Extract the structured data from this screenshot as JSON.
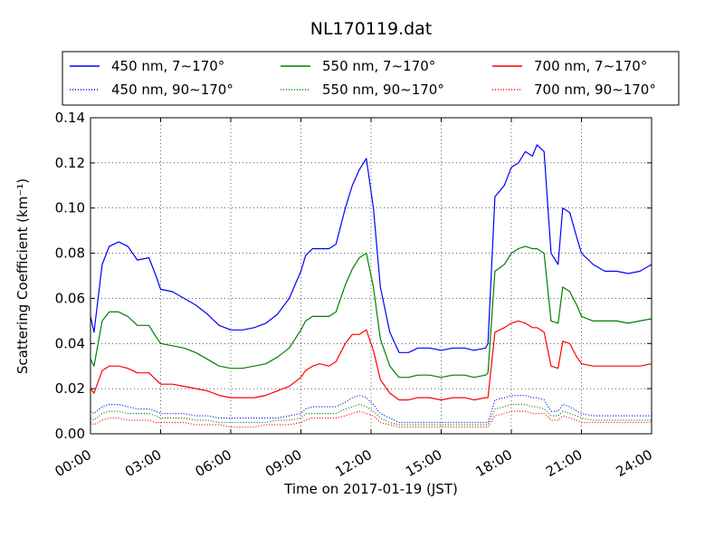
{
  "chart_data": {
    "type": "line",
    "title": "NL170119.dat",
    "xlabel": "Time on 2017-01-19 (JST)",
    "ylabel": "Scattering Coefficient (km⁻¹)",
    "xlim": [
      0,
      24
    ],
    "ylim": [
      0,
      0.14
    ],
    "x_ticks": [
      0,
      3,
      6,
      9,
      12,
      15,
      18,
      21,
      24
    ],
    "x_tick_labels": [
      "00:00",
      "03:00",
      "06:00",
      "09:00",
      "12:00",
      "15:00",
      "18:00",
      "21:00",
      "24:00"
    ],
    "y_ticks": [
      0,
      0.02,
      0.04,
      0.06,
      0.08,
      0.1,
      0.12,
      0.14
    ],
    "y_tick_labels": [
      "0.00",
      "0.02",
      "0.04",
      "0.06",
      "0.08",
      "0.10",
      "0.12",
      "0.14"
    ],
    "grid": true,
    "legend_position": "top",
    "legend_columns": 3,
    "x": [
      0,
      0.15,
      0.5,
      0.8,
      1.2,
      1.6,
      2.0,
      2.5,
      2.8,
      3.0,
      3.5,
      4.0,
      4.5,
      5.0,
      5.5,
      6.0,
      6.5,
      7.0,
      7.5,
      8.0,
      8.5,
      9.0,
      9.2,
      9.5,
      9.8,
      10.2,
      10.5,
      10.9,
      11.2,
      11.5,
      11.8,
      12.1,
      12.4,
      12.8,
      13.2,
      13.6,
      14.0,
      14.5,
      15.0,
      15.5,
      16.0,
      16.4,
      16.9,
      17.0,
      17.3,
      17.7,
      18.0,
      18.3,
      18.6,
      18.9,
      19.1,
      19.4,
      19.7,
      20.0,
      20.2,
      20.5,
      20.8,
      21.0,
      21.5,
      22.0,
      22.5,
      23.0,
      23.5,
      24.0
    ],
    "series": [
      {
        "name": "450 nm, 7∼170°",
        "color": "#0000ff",
        "style": "solid",
        "values": [
          0.052,
          0.045,
          0.075,
          0.083,
          0.085,
          0.083,
          0.077,
          0.078,
          0.07,
          0.064,
          0.063,
          0.06,
          0.057,
          0.053,
          0.048,
          0.046,
          0.046,
          0.047,
          0.049,
          0.053,
          0.06,
          0.072,
          0.079,
          0.082,
          0.082,
          0.082,
          0.084,
          0.1,
          0.11,
          0.117,
          0.122,
          0.1,
          0.065,
          0.045,
          0.036,
          0.036,
          0.038,
          0.038,
          0.037,
          0.038,
          0.038,
          0.037,
          0.038,
          0.04,
          0.105,
          0.11,
          0.118,
          0.12,
          0.125,
          0.123,
          0.128,
          0.125,
          0.08,
          0.075,
          0.1,
          0.098,
          0.087,
          0.08,
          0.075,
          0.072,
          0.072,
          0.071,
          0.072,
          0.075
        ]
      },
      {
        "name": "550 nm, 7∼170°",
        "color": "#008000",
        "style": "solid",
        "values": [
          0.033,
          0.03,
          0.05,
          0.054,
          0.054,
          0.052,
          0.048,
          0.048,
          0.043,
          0.04,
          0.039,
          0.038,
          0.036,
          0.033,
          0.03,
          0.029,
          0.029,
          0.03,
          0.031,
          0.034,
          0.038,
          0.046,
          0.05,
          0.052,
          0.052,
          0.052,
          0.054,
          0.066,
          0.073,
          0.078,
          0.08,
          0.065,
          0.042,
          0.03,
          0.025,
          0.025,
          0.026,
          0.026,
          0.025,
          0.026,
          0.026,
          0.025,
          0.026,
          0.027,
          0.072,
          0.075,
          0.08,
          0.082,
          0.083,
          0.082,
          0.082,
          0.08,
          0.05,
          0.049,
          0.065,
          0.063,
          0.057,
          0.052,
          0.05,
          0.05,
          0.05,
          0.049,
          0.05,
          0.051
        ]
      },
      {
        "name": "700 nm, 7∼170°",
        "color": "#ff0000",
        "style": "solid",
        "values": [
          0.02,
          0.018,
          0.028,
          0.03,
          0.03,
          0.029,
          0.027,
          0.027,
          0.024,
          0.022,
          0.022,
          0.021,
          0.02,
          0.019,
          0.017,
          0.016,
          0.016,
          0.016,
          0.017,
          0.019,
          0.021,
          0.025,
          0.028,
          0.03,
          0.031,
          0.03,
          0.032,
          0.04,
          0.044,
          0.044,
          0.046,
          0.037,
          0.024,
          0.018,
          0.015,
          0.015,
          0.016,
          0.016,
          0.015,
          0.016,
          0.016,
          0.015,
          0.016,
          0.016,
          0.045,
          0.047,
          0.049,
          0.05,
          0.049,
          0.047,
          0.047,
          0.045,
          0.03,
          0.029,
          0.041,
          0.04,
          0.034,
          0.031,
          0.03,
          0.03,
          0.03,
          0.03,
          0.03,
          0.031
        ]
      },
      {
        "name": "450 nm, 90∼170°",
        "color": "#0000ff",
        "style": "dotted",
        "values": [
          0.01,
          0.009,
          0.012,
          0.013,
          0.013,
          0.012,
          0.011,
          0.011,
          0.01,
          0.009,
          0.009,
          0.009,
          0.008,
          0.008,
          0.007,
          0.007,
          0.007,
          0.007,
          0.007,
          0.007,
          0.008,
          0.009,
          0.011,
          0.012,
          0.012,
          0.012,
          0.012,
          0.014,
          0.016,
          0.017,
          0.016,
          0.013,
          0.009,
          0.007,
          0.005,
          0.005,
          0.005,
          0.005,
          0.005,
          0.005,
          0.005,
          0.005,
          0.005,
          0.005,
          0.015,
          0.016,
          0.017,
          0.017,
          0.017,
          0.016,
          0.016,
          0.015,
          0.01,
          0.01,
          0.013,
          0.012,
          0.01,
          0.009,
          0.008,
          0.008,
          0.008,
          0.008,
          0.008,
          0.008
        ]
      },
      {
        "name": "550 nm, 90∼170°",
        "color": "#008000",
        "style": "dotted",
        "values": [
          0.007,
          0.006,
          0.009,
          0.01,
          0.01,
          0.009,
          0.009,
          0.009,
          0.008,
          0.007,
          0.007,
          0.007,
          0.006,
          0.006,
          0.005,
          0.005,
          0.005,
          0.005,
          0.005,
          0.006,
          0.006,
          0.007,
          0.009,
          0.009,
          0.009,
          0.009,
          0.009,
          0.011,
          0.012,
          0.013,
          0.012,
          0.01,
          0.007,
          0.005,
          0.004,
          0.004,
          0.004,
          0.004,
          0.004,
          0.004,
          0.004,
          0.004,
          0.004,
          0.004,
          0.011,
          0.012,
          0.013,
          0.013,
          0.013,
          0.012,
          0.012,
          0.011,
          0.008,
          0.008,
          0.01,
          0.009,
          0.008,
          0.007,
          0.006,
          0.006,
          0.006,
          0.006,
          0.006,
          0.006
        ]
      },
      {
        "name": "700 nm, 90∼170°",
        "color": "#ff0000",
        "style": "dotted",
        "values": [
          0.005,
          0.004,
          0.006,
          0.007,
          0.007,
          0.006,
          0.006,
          0.006,
          0.005,
          0.005,
          0.005,
          0.005,
          0.004,
          0.004,
          0.004,
          0.003,
          0.003,
          0.003,
          0.004,
          0.004,
          0.004,
          0.005,
          0.006,
          0.007,
          0.007,
          0.007,
          0.007,
          0.008,
          0.009,
          0.01,
          0.009,
          0.008,
          0.005,
          0.004,
          0.003,
          0.003,
          0.003,
          0.003,
          0.003,
          0.003,
          0.003,
          0.003,
          0.003,
          0.003,
          0.008,
          0.009,
          0.01,
          0.01,
          0.01,
          0.009,
          0.009,
          0.009,
          0.006,
          0.006,
          0.008,
          0.007,
          0.006,
          0.005,
          0.005,
          0.005,
          0.005,
          0.005,
          0.005,
          0.005
        ]
      }
    ]
  }
}
